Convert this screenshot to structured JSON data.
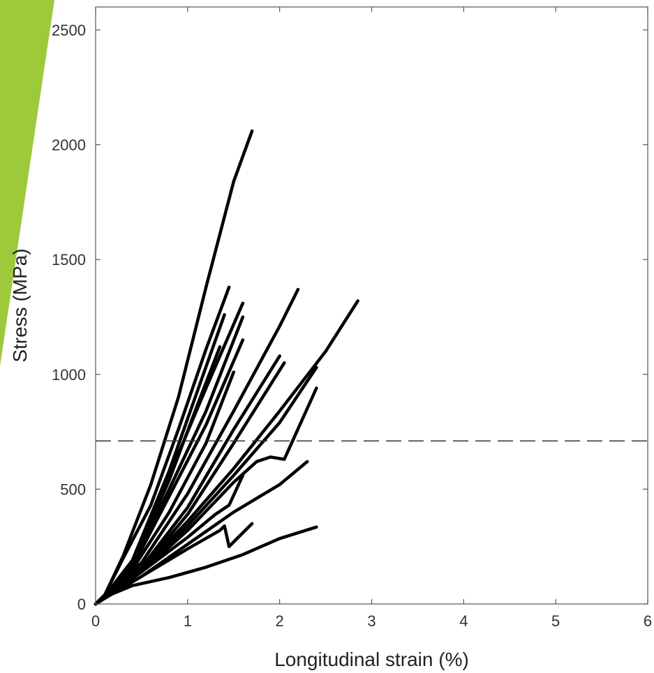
{
  "colors": {
    "accent_shape": "#9dc93b",
    "curves": "#000000",
    "axes": "#555555",
    "reference_line": "#333333"
  },
  "chart_data": {
    "type": "line",
    "title": "",
    "xlabel": "Longitudinal strain (%)",
    "ylabel": "Stress (MPa)",
    "xlim": [
      0,
      6
    ],
    "ylim": [
      0,
      2600
    ],
    "xticks": [
      "0",
      "1",
      "2",
      "3",
      "4",
      "5",
      "6"
    ],
    "yticks": [
      "0",
      "500",
      "1000",
      "1500",
      "2000",
      "2500"
    ],
    "grid": false,
    "legend": "none",
    "reference_lines": [
      {
        "orientation": "horizontal",
        "y": 710,
        "style": "dashed"
      }
    ],
    "series": [
      {
        "x": [
          0,
          0.1,
          0.3,
          0.6,
          0.9,
          1.2,
          1.5,
          1.7
        ],
        "y": [
          0,
          40,
          210,
          520,
          900,
          1380,
          1840,
          2060
        ]
      },
      {
        "x": [
          0,
          0.1,
          0.3,
          0.6,
          0.9,
          1.2,
          1.45
        ],
        "y": [
          0,
          40,
          200,
          430,
          760,
          1110,
          1380
        ]
      },
      {
        "x": [
          0,
          0.1,
          0.4,
          0.8,
          1.2,
          1.6
        ],
        "y": [
          0,
          35,
          180,
          560,
          940,
          1310
        ]
      },
      {
        "x": [
          0,
          0.1,
          0.4,
          0.8,
          1.1,
          1.4
        ],
        "y": [
          0,
          35,
          190,
          580,
          920,
          1260
        ]
      },
      {
        "x": [
          0,
          0.1,
          0.4,
          0.8,
          1.2,
          1.6
        ],
        "y": [
          0,
          30,
          170,
          500,
          840,
          1250
        ]
      },
      {
        "x": [
          0,
          0.1,
          0.4,
          0.8,
          1.2,
          1.6
        ],
        "y": [
          0,
          30,
          160,
          470,
          780,
          1150
        ]
      },
      {
        "x": [
          0,
          0.1,
          0.4,
          0.8,
          1.1,
          1.35
        ],
        "y": [
          0,
          30,
          175,
          540,
          860,
          1120
        ]
      },
      {
        "x": [
          0,
          0.1,
          0.4,
          0.8,
          1.2,
          1.5
        ],
        "y": [
          0,
          30,
          150,
          400,
          700,
          1010
        ]
      },
      {
        "x": [
          0,
          0.1,
          0.5,
          1.0,
          1.5,
          2.0,
          2.2
        ],
        "y": [
          0,
          30,
          180,
          480,
          840,
          1210,
          1370
        ]
      },
      {
        "x": [
          0,
          0.1,
          0.5,
          1.0,
          1.5,
          2.0
        ],
        "y": [
          0,
          30,
          160,
          420,
          760,
          1080
        ]
      },
      {
        "x": [
          0,
          0.1,
          0.5,
          1.0,
          1.5,
          2.05
        ],
        "y": [
          0,
          28,
          150,
          390,
          700,
          1050
        ]
      },
      {
        "x": [
          0,
          0.1,
          0.5,
          1.0,
          1.5,
          2.0,
          2.5,
          2.85
        ],
        "y": [
          0,
          30,
          150,
          360,
          590,
          840,
          1100,
          1320
        ]
      },
      {
        "x": [
          0,
          0.1,
          0.5,
          1.0,
          1.5,
          2.0,
          2.4
        ],
        "y": [
          0,
          28,
          140,
          340,
          560,
          790,
          1030
        ]
      },
      {
        "x": [
          0,
          0.1,
          0.5,
          1.0,
          1.5,
          1.75,
          1.9,
          2.05,
          2.4
        ],
        "y": [
          0,
          28,
          140,
          320,
          530,
          620,
          640,
          630,
          940
        ]
      },
      {
        "x": [
          0,
          0.1,
          0.5,
          1.0,
          1.3,
          1.45,
          1.6
        ],
        "y": [
          0,
          28,
          140,
          290,
          390,
          430,
          560
        ]
      },
      {
        "x": [
          0,
          0.1,
          0.5,
          1.0,
          1.5,
          2.0,
          2.3
        ],
        "y": [
          0,
          25,
          120,
          260,
          400,
          520,
          620
        ]
      },
      {
        "x": [
          0,
          0.1,
          0.5,
          1.0,
          1.35,
          1.4,
          1.45,
          1.55,
          1.7
        ],
        "y": [
          0,
          25,
          120,
          240,
          320,
          340,
          250,
          290,
          350
        ]
      },
      {
        "x": [
          0,
          0.1,
          0.4,
          0.8,
          1.2,
          1.6,
          2.0,
          2.4
        ],
        "y": [
          0,
          30,
          80,
          115,
          160,
          215,
          285,
          335
        ]
      }
    ]
  }
}
